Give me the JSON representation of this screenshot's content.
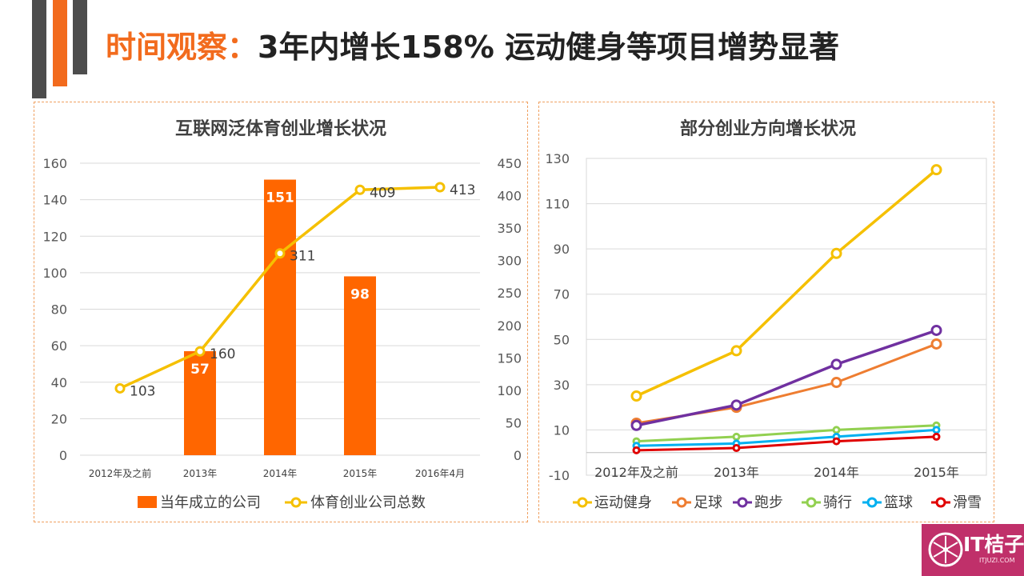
{
  "title": {
    "highlight": "时间观察：",
    "rest": "3年内增长158%  运动健身等项目增势显著"
  },
  "colors": {
    "accent": "#f26b1d",
    "bar": "#ff6600",
    "line_total": "#f5c000",
    "panel_border": "#f0a060",
    "logo_bg": "#c0306a"
  },
  "logo": {
    "text": "IT桔子",
    "sub": "ITJUZI.COM"
  },
  "chart_data": [
    {
      "type": "bar",
      "title": "互联网泛体育创业增长状况",
      "categories": [
        "2012年及之前",
        "2013年",
        "2014年",
        "2015年",
        "2016年4月"
      ],
      "series": [
        {
          "name": "当年成立的公司",
          "kind": "bar",
          "axis": "left",
          "values": [
            null,
            57,
            151,
            98,
            null
          ],
          "color": "#ff6600"
        },
        {
          "name": "体育创业公司总数",
          "kind": "line",
          "axis": "right",
          "values": [
            103,
            160,
            311,
            409,
            413
          ],
          "color": "#f5c000"
        }
      ],
      "y_left": {
        "min": 0,
        "max": 160,
        "ticks": [
          0,
          20,
          40,
          60,
          80,
          100,
          120,
          140,
          160
        ]
      },
      "y_right": {
        "min": 0,
        "max": 450,
        "ticks": [
          0,
          50,
          100,
          150,
          200,
          250,
          300,
          350,
          400,
          450
        ]
      },
      "grid": true,
      "legend": "bottom"
    },
    {
      "type": "line",
      "title": "部分创业方向增长状况",
      "categories": [
        "2012年及之前",
        "2013年",
        "2014年",
        "2015年"
      ],
      "y": {
        "min": -10,
        "max": 130,
        "ticks": [
          -10,
          10,
          30,
          50,
          70,
          90,
          110,
          130
        ]
      },
      "series": [
        {
          "name": "运动健身",
          "values": [
            25,
            45,
            88,
            125
          ],
          "color": "#f5c000"
        },
        {
          "name": "足球",
          "values": [
            13,
            20,
            31,
            48
          ],
          "color": "#ee7d31"
        },
        {
          "name": "跑步",
          "values": [
            12,
            21,
            39,
            54
          ],
          "color": "#7030a0"
        },
        {
          "name": "骑行",
          "values": [
            5,
            7,
            10,
            12
          ],
          "color": "#92d050"
        },
        {
          "name": "篮球",
          "values": [
            3,
            4,
            7,
            10
          ],
          "color": "#00b0f0"
        },
        {
          "name": "滑雪",
          "values": [
            1,
            2,
            5,
            7
          ],
          "color": "#e00000"
        }
      ],
      "grid": true,
      "legend": "bottom"
    }
  ]
}
